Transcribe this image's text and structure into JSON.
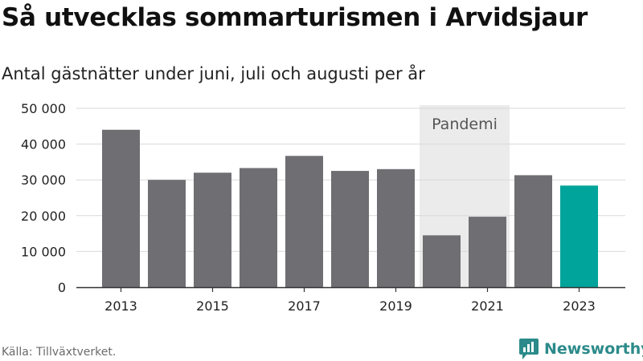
{
  "title": "Så utvecklas sommarturismen i Arvidsjaur",
  "subtitle": "Antal gästnätter under juni, juli och augusti per år",
  "source": "Källa: Tillväxtverket.",
  "brand": "Newsworthy",
  "colors": {
    "bar": "#6f6e73",
    "highlight": "#00a49a",
    "shade": "#ebebeb",
    "grid": "#d9d9d9",
    "brand": "#2c8a8a"
  },
  "chart_data": {
    "type": "bar",
    "title": "Så utvecklas sommarturismen i Arvidsjaur",
    "subtitle": "Antal gästnätter under juni, juli och augusti per år",
    "categories": [
      "2013",
      "2014",
      "2015",
      "2016",
      "2017",
      "2018",
      "2019",
      "2020",
      "2021",
      "2022",
      "2023"
    ],
    "values": [
      44000,
      30000,
      32000,
      33300,
      36700,
      32500,
      33000,
      14500,
      19700,
      31300,
      28400
    ],
    "highlight_index": 10,
    "ylim": [
      0,
      50000
    ],
    "yticks": [
      0,
      10000,
      20000,
      30000,
      40000,
      50000
    ],
    "ytick_labels": [
      "0",
      "10 000",
      "20 000",
      "30 000",
      "40 000",
      "50 000"
    ],
    "xtick_labels": [
      "2013",
      "2015",
      "2017",
      "2019",
      "2021",
      "2023"
    ],
    "grid": true,
    "annotation": {
      "text": "Pandemi",
      "from": "2020",
      "to": "2021"
    }
  }
}
